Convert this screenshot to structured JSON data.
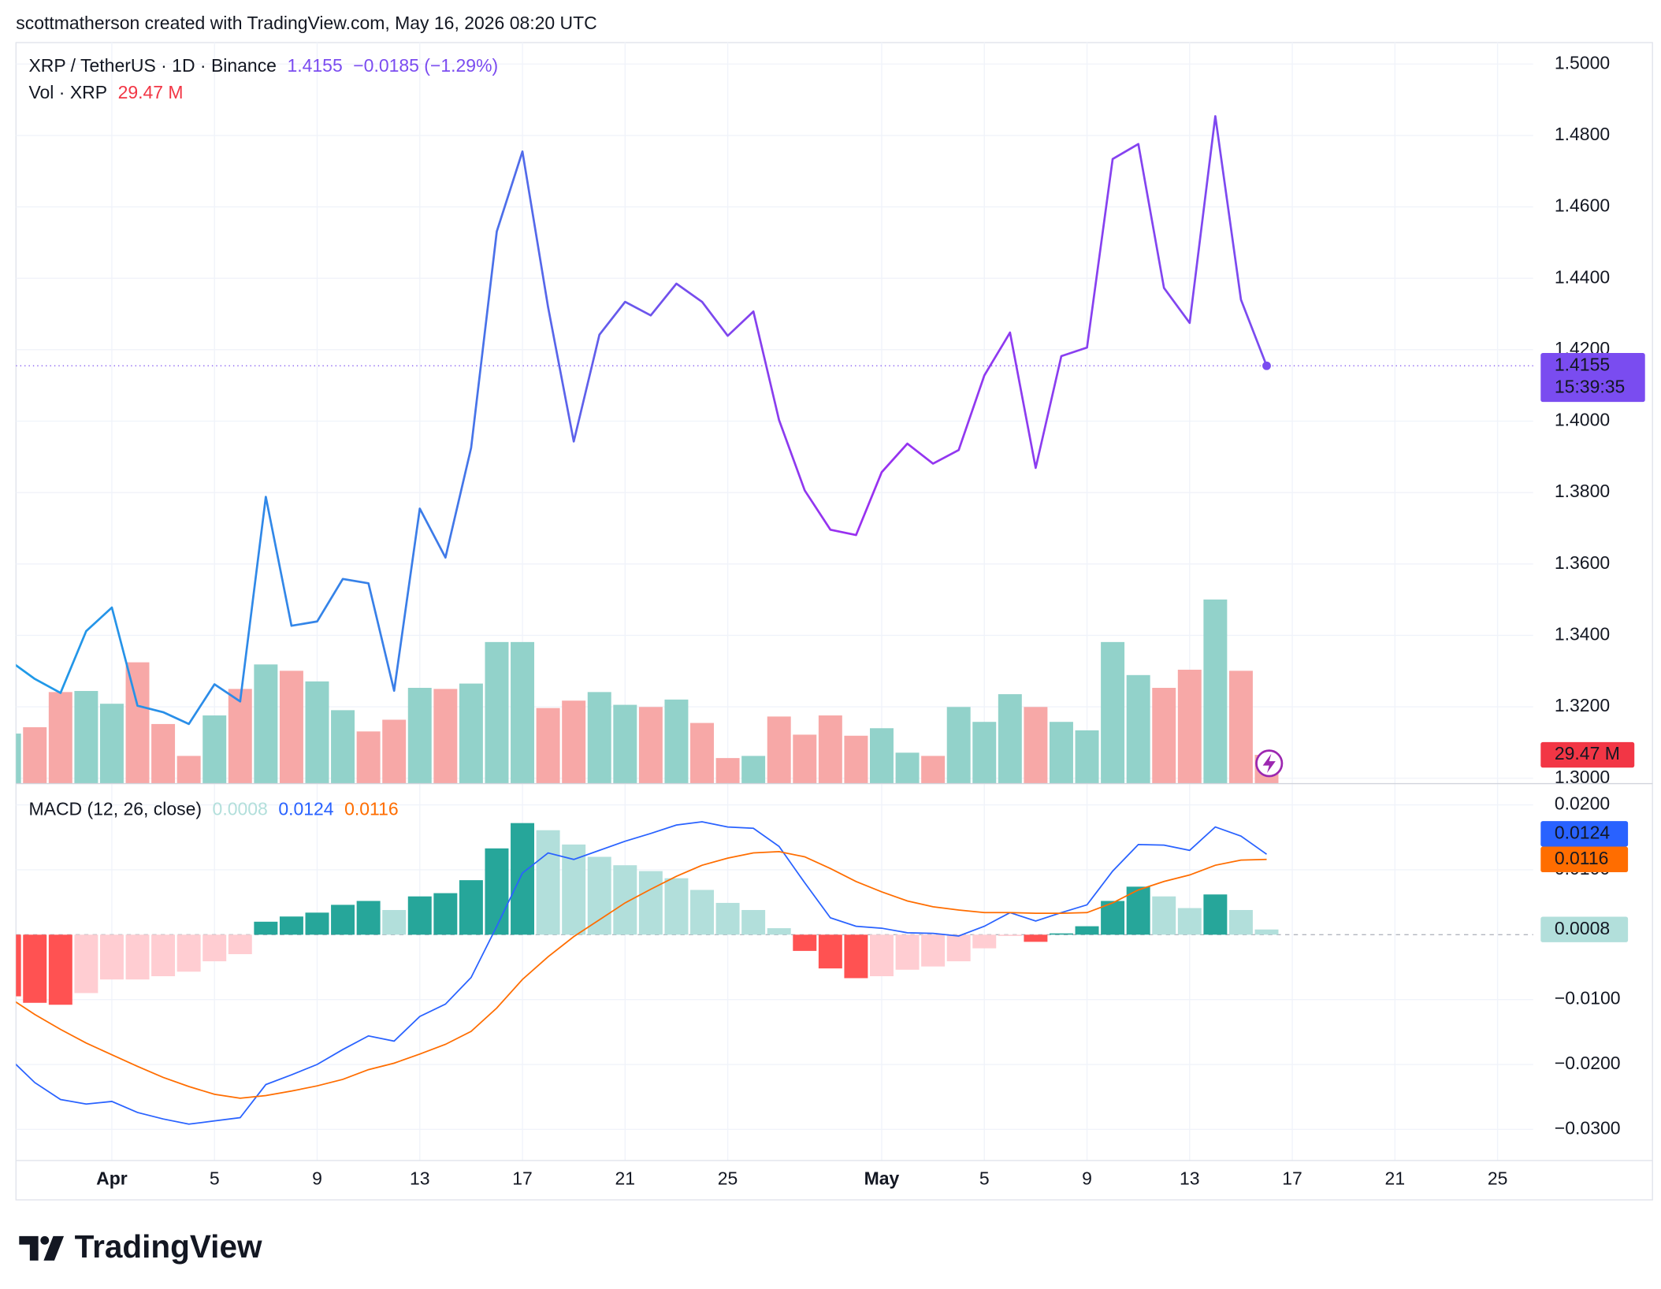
{
  "header": "scottmatherson created with TradingView.com, May 16, 2026 08:20 UTC",
  "footer": "TradingView",
  "chart_data": [
    {
      "type": "line",
      "title": "XRP / TetherUS · 1D · Binance",
      "last_label": "1.4155",
      "change": "−0.0185 (−1.29%)",
      "countdown": "15:39:35",
      "colors": [
        "#1e9be8",
        "#3c7ce8",
        "#9a30f0",
        "#7a4cf0"
      ],
      "x": [
        "2026-03-28",
        "2026-03-29",
        "2026-03-30",
        "2026-03-31",
        "2026-04-01",
        "2026-04-02",
        "2026-04-03",
        "2026-04-04",
        "2026-04-05",
        "2026-04-06",
        "2026-04-07",
        "2026-04-08",
        "2026-04-09",
        "2026-04-10",
        "2026-04-11",
        "2026-04-12",
        "2026-04-13",
        "2026-04-14",
        "2026-04-15",
        "2026-04-16",
        "2026-04-17",
        "2026-04-18",
        "2026-04-19",
        "2026-04-20",
        "2026-04-21",
        "2026-04-22",
        "2026-04-23",
        "2026-04-24",
        "2026-04-25",
        "2026-04-26",
        "2026-04-27",
        "2026-04-28",
        "2026-04-29",
        "2026-04-30",
        "2026-05-01",
        "2026-05-02",
        "2026-05-03",
        "2026-05-04",
        "2026-05-05",
        "2026-05-06",
        "2026-05-07",
        "2026-05-08",
        "2026-05-09",
        "2026-05-10",
        "2026-05-11",
        "2026-05-12",
        "2026-05-13",
        "2026-05-14",
        "2026-05-15",
        "2026-05-16"
      ],
      "values": [
        1.333,
        1.3278,
        1.3239,
        1.3412,
        1.3478,
        1.3203,
        1.3185,
        1.3152,
        1.3263,
        1.3215,
        1.3788,
        1.3427,
        1.3439,
        1.3558,
        1.3546,
        1.3245,
        1.3755,
        1.3618,
        1.3925,
        1.4531,
        1.4755,
        1.4319,
        1.3943,
        1.4242,
        1.4334,
        1.4296,
        1.4385,
        1.4334,
        1.4239,
        1.4307,
        1.4003,
        1.3806,
        1.3696,
        1.3681,
        1.3857,
        1.3937,
        1.3881,
        1.3919,
        1.4128,
        1.4248,
        1.3869,
        1.4182,
        1.4206,
        1.4734,
        1.4776,
        1.4373,
        1.4275,
        1.4854,
        1.434,
        1.4155
      ],
      "xlim": [
        "2026-03-28T06:20Z",
        "2026-05-26T09:20Z"
      ],
      "xticks": [
        {
          "value": "2026-04-01",
          "label": "Apr"
        },
        {
          "value": "2026-04-05",
          "label": "5"
        },
        {
          "value": "2026-04-09",
          "label": "9"
        },
        {
          "value": "2026-04-13",
          "label": "13"
        },
        {
          "value": "2026-04-17",
          "label": "17"
        },
        {
          "value": "2026-04-21",
          "label": "21"
        },
        {
          "value": "2026-04-25",
          "label": "25"
        },
        {
          "value": "2026-05-01",
          "label": "May"
        },
        {
          "value": "2026-05-05",
          "label": "5"
        },
        {
          "value": "2026-05-09",
          "label": "9"
        },
        {
          "value": "2026-05-13",
          "label": "13"
        },
        {
          "value": "2026-05-17",
          "label": "17"
        },
        {
          "value": "2026-05-21",
          "label": "21"
        },
        {
          "value": "2026-05-25",
          "label": "25"
        }
      ],
      "ylim": [
        1.2985,
        1.506
      ],
      "yticks": [
        {
          "value": 1.3,
          "label": "1.3000"
        },
        {
          "value": 1.32,
          "label": "1.3200"
        },
        {
          "value": 1.34,
          "label": "1.3400"
        },
        {
          "value": 1.36,
          "label": "1.3600"
        },
        {
          "value": 1.38,
          "label": "1.3800"
        },
        {
          "value": 1.4,
          "label": "1.4000"
        },
        {
          "value": 1.42,
          "label": "1.4200"
        },
        {
          "value": 1.44,
          "label": "1.4400"
        },
        {
          "value": 1.46,
          "label": "1.4600"
        },
        {
          "value": 1.48,
          "label": "1.4800"
        },
        {
          "value": 1.5,
          "label": "1.5000"
        }
      ],
      "grid": true
    },
    {
      "type": "bar",
      "title": "Vol · XRP",
      "last_label": "29.47 M",
      "label_color": "#f23645",
      "values": [
        51.3,
        57.8,
        93.9,
        95.0,
        81.9,
        124.4,
        61.1,
        28.4,
        69.9,
        97.1,
        122.2,
        115.7,
        104.8,
        75.3,
        53.5,
        65.5,
        98.2,
        97.1,
        102.6,
        145.2,
        145.2,
        77.5,
        85.1,
        93.9,
        80.8,
        78.6,
        86.2,
        62.2,
        26.2,
        28.4,
        68.8,
        50.2,
        69.9,
        49.1,
        56.8,
        31.7,
        28.4,
        78.6,
        63.3,
        91.7,
        78.6,
        63.3,
        54.6,
        145.2,
        111.3,
        98.2,
        116.8,
        188.8,
        115.7,
        29.47
      ],
      "colors": [
        "#92d2ca",
        "#f7a8a7",
        "#f7a8a7",
        "#92d2ca",
        "#92d2ca",
        "#f7a8a7",
        "#f7a8a7",
        "#f7a8a7",
        "#92d2ca",
        "#f7a8a7",
        "#92d2ca",
        "#f7a8a7",
        "#92d2ca",
        "#92d2ca",
        "#f7a8a7",
        "#f7a8a7",
        "#92d2ca",
        "#f7a8a7",
        "#92d2ca",
        "#92d2ca",
        "#92d2ca",
        "#f7a8a7",
        "#f7a8a7",
        "#92d2ca",
        "#92d2ca",
        "#f7a8a7",
        "#92d2ca",
        "#f7a8a7",
        "#f7a8a7",
        "#92d2ca",
        "#f7a8a7",
        "#f7a8a7",
        "#f7a8a7",
        "#f7a8a7",
        "#92d2ca",
        "#92d2ca",
        "#f7a8a7",
        "#92d2ca",
        "#92d2ca",
        "#92d2ca",
        "#f7a8a7",
        "#92d2ca",
        "#92d2ca",
        "#92d2ca",
        "#92d2ca",
        "#f7a8a7",
        "#f7a8a7",
        "#92d2ca",
        "#f7a8a7",
        "#f7a8a7"
      ],
      "ylim": [
        0,
        760
      ]
    },
    {
      "type": "macd",
      "title": "MACD (12, 26, close)",
      "series": [
        {
          "type": "bar",
          "last_label": "0.0008",
          "color": "#b2dfdb",
          "values": [
            -0.0095,
            -0.0105,
            -0.0108,
            -0.009,
            -0.0069,
            -0.0069,
            -0.0064,
            -0.0057,
            -0.0041,
            -0.003,
            0.002,
            0.0028,
            0.0034,
            0.0046,
            0.0052,
            0.0038,
            0.0059,
            0.0064,
            0.0084,
            0.0133,
            0.0172,
            0.0161,
            0.0139,
            0.012,
            0.0107,
            0.0098,
            0.0087,
            0.0069,
            0.0049,
            0.0038,
            0.001,
            -0.0025,
            -0.0052,
            -0.0067,
            -0.0064,
            -0.0054,
            -0.0049,
            -0.0041,
            -0.0021,
            -0.0002,
            -0.0011,
            0.0002,
            0.0013,
            0.0052,
            0.0074,
            0.0059,
            0.0041,
            0.0062,
            0.0038,
            0.0008
          ],
          "colors": [
            "#ff5252",
            "#ff5252",
            "#ff5252",
            "#ffcdd2",
            "#ffcdd2",
            "#ffcdd2",
            "#ffcdd2",
            "#ffcdd2",
            "#ffcdd2",
            "#ffcdd2",
            "#26a69a",
            "#26a69a",
            "#26a69a",
            "#26a69a",
            "#26a69a",
            "#b2dfdb",
            "#26a69a",
            "#26a69a",
            "#26a69a",
            "#26a69a",
            "#26a69a",
            "#b2dfdb",
            "#b2dfdb",
            "#b2dfdb",
            "#b2dfdb",
            "#b2dfdb",
            "#b2dfdb",
            "#b2dfdb",
            "#b2dfdb",
            "#b2dfdb",
            "#b2dfdb",
            "#ff5252",
            "#ff5252",
            "#ff5252",
            "#ffcdd2",
            "#ffcdd2",
            "#ffcdd2",
            "#ffcdd2",
            "#ffcdd2",
            "#ffcdd2",
            "#ff5252",
            "#26a69a",
            "#26a69a",
            "#26a69a",
            "#26a69a",
            "#b2dfdb",
            "#b2dfdb",
            "#26a69a",
            "#b2dfdb",
            "#b2dfdb"
          ]
        },
        {
          "type": "line",
          "last_label": "0.0124",
          "color": "#2962ff",
          "values": [
            -0.019,
            -0.0228,
            -0.0254,
            -0.0261,
            -0.0257,
            -0.0274,
            -0.0284,
            -0.0292,
            -0.0287,
            -0.0282,
            -0.0231,
            -0.0216,
            -0.02,
            -0.0177,
            -0.0156,
            -0.0164,
            -0.0126,
            -0.0107,
            -0.0066,
            0.0013,
            0.0095,
            0.0126,
            0.0116,
            0.013,
            0.0144,
            0.0156,
            0.0169,
            0.0174,
            0.0166,
            0.0164,
            0.0136,
            0.008,
            0.0026,
            0.0013,
            0.001,
            0.0003,
            0.0002,
            -0.0002,
            0.0013,
            0.0034,
            0.0021,
            0.0034,
            0.0046,
            0.0098,
            0.0139,
            0.0138,
            0.013,
            0.0166,
            0.0152,
            0.0124
          ]
        },
        {
          "type": "line",
          "last_label": "0.0116",
          "color": "#ff6d00",
          "values": [
            -0.0097,
            -0.0123,
            -0.0146,
            -0.0167,
            -0.0185,
            -0.0203,
            -0.022,
            -0.0234,
            -0.0246,
            -0.0252,
            -0.0248,
            -0.0241,
            -0.0233,
            -0.0223,
            -0.0208,
            -0.0198,
            -0.0184,
            -0.0169,
            -0.0149,
            -0.0113,
            -0.0069,
            -0.0034,
            -0.0003,
            0.0023,
            0.0049,
            0.007,
            0.009,
            0.0107,
            0.0118,
            0.0126,
            0.0128,
            0.012,
            0.0102,
            0.0082,
            0.0066,
            0.0052,
            0.0043,
            0.0038,
            0.0034,
            0.0034,
            0.0033,
            0.0033,
            0.0034,
            0.0049,
            0.0069,
            0.0082,
            0.0092,
            0.0107,
            0.0115,
            0.0116
          ]
        }
      ],
      "ylim": [
        -0.0348,
        0.0223
      ],
      "yticks": [
        {
          "value": -0.03,
          "label": "−0.0300"
        },
        {
          "value": -0.02,
          "label": "−0.0200"
        },
        {
          "value": -0.01,
          "label": "−0.0100"
        },
        {
          "value": 0.01,
          "label": "0.0100"
        },
        {
          "value": 0.02,
          "label": "0.0200"
        }
      ],
      "grid": true
    }
  ]
}
